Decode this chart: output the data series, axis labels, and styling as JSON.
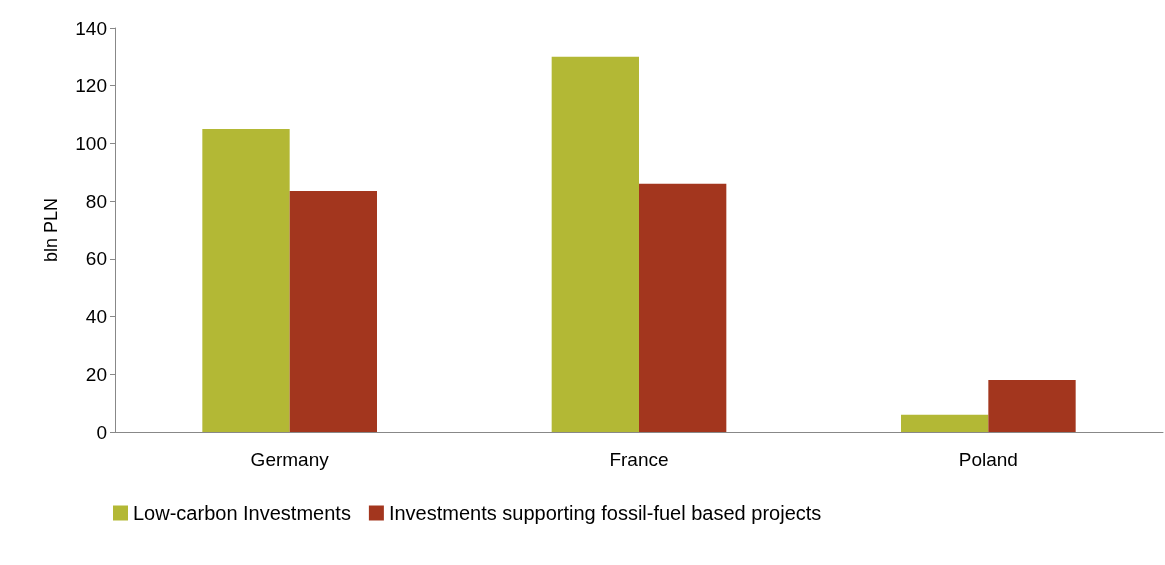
{
  "chart_data": {
    "type": "bar",
    "ylabel": "bln PLN",
    "categories": [
      "Germany",
      "France",
      "Poland"
    ],
    "series": [
      {
        "name": "Low-carbon Investments",
        "color": "#b3b835",
        "values": [
          105,
          130,
          6
        ]
      },
      {
        "name": "Investments supporting fossil-fuel based projects",
        "color": "#a3361e",
        "values": [
          83.5,
          86,
          18
        ]
      }
    ],
    "ylim": [
      0,
      140
    ],
    "yticks": [
      0,
      20,
      40,
      60,
      80,
      100,
      120,
      140
    ],
    "grid": false,
    "legend": "bottom left"
  }
}
